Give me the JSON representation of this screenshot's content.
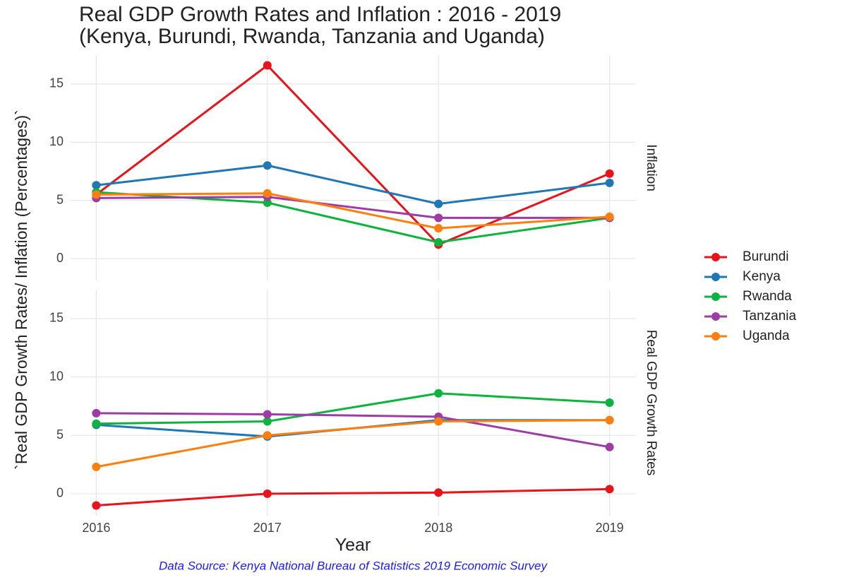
{
  "title": [
    "Real GDP Growth Rates and Inflation : 2016 - 2019",
    "(Kenya, Burundi, Rwanda, Tanzania and Uganda)"
  ],
  "y_label": "`Real GDP Growth Rates/ Inflation (Percentages)`",
  "x_label": "Year",
  "caption": "Data Source: Kenya National Bureau of Statistics 2019 Economic Survey",
  "chart_data": [
    {
      "type": "line",
      "facet": "Inflation",
      "x": [
        2016,
        2017,
        2018,
        2019
      ],
      "xlim": [
        2015.85,
        2019.15
      ],
      "xticks": [
        2016,
        2017,
        2018,
        2019
      ],
      "ylim": [
        -1.88,
        17.48
      ],
      "yticks": [
        0,
        5,
        10,
        15
      ],
      "grid": true,
      "series": [
        {
          "name": "Burundi",
          "color": "#e8131b",
          "values": [
            5.5,
            16.6,
            1.2,
            7.3
          ]
        },
        {
          "name": "Kenya",
          "color": "#1f78b4",
          "values": [
            6.3,
            8.0,
            4.7,
            6.5
          ]
        },
        {
          "name": "Rwanda",
          "color": "#0cb33c",
          "values": [
            5.7,
            4.8,
            1.4,
            3.5
          ]
        },
        {
          "name": "Tanzania",
          "color": "#9e3ca6",
          "values": [
            5.2,
            5.3,
            3.5,
            3.5
          ]
        },
        {
          "name": "Uganda",
          "color": "#ff7f0e",
          "values": [
            5.5,
            5.6,
            2.6,
            3.6
          ]
        }
      ]
    },
    {
      "type": "line",
      "facet": "Real GDP Growth Rates",
      "x": [
        2016,
        2017,
        2018,
        2019
      ],
      "xlim": [
        2015.85,
        2019.15
      ],
      "xticks": [
        2016,
        2017,
        2018,
        2019
      ],
      "ylim": [
        -1.88,
        17.48
      ],
      "yticks": [
        0,
        5,
        10,
        15
      ],
      "grid": true,
      "series": [
        {
          "name": "Burundi",
          "color": "#e8131b",
          "values": [
            -1.0,
            0.0,
            0.1,
            0.4
          ]
        },
        {
          "name": "Kenya",
          "color": "#1f78b4",
          "values": [
            5.9,
            4.9,
            6.3,
            6.3
          ]
        },
        {
          "name": "Rwanda",
          "color": "#0cb33c",
          "values": [
            6.0,
            6.2,
            8.6,
            7.8
          ]
        },
        {
          "name": "Tanzania",
          "color": "#9e3ca6",
          "values": [
            6.9,
            6.8,
            6.6,
            4.0
          ]
        },
        {
          "name": "Uganda",
          "color": "#ff7f0e",
          "values": [
            2.3,
            5.0,
            6.2,
            6.3
          ]
        }
      ]
    }
  ]
}
